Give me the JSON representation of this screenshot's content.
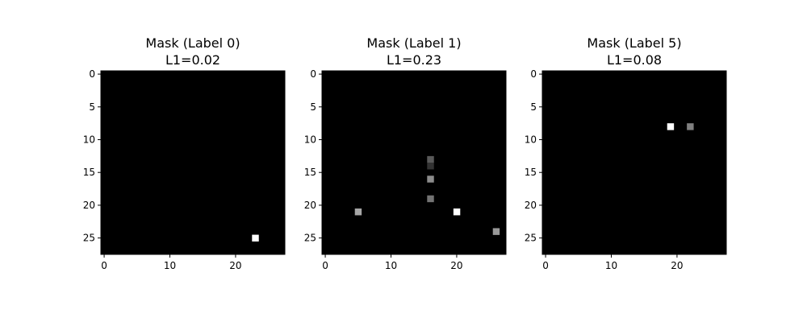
{
  "chart_data": [
    {
      "type": "heatmap",
      "title_line1": "Mask (Label 0)",
      "title_line2": "L1=0.02",
      "grid_size": 28,
      "colormap": "gray",
      "background": "#000000",
      "xticks": [
        0,
        10,
        20
      ],
      "yticks": [
        0,
        5,
        10,
        15,
        20,
        25
      ],
      "cells": [
        {
          "row": 25,
          "col": 23,
          "value": 1.0
        }
      ]
    },
    {
      "type": "heatmap",
      "title_line1": "Mask (Label 1)",
      "title_line2": "L1=0.23",
      "grid_size": 28,
      "colormap": "gray",
      "background": "#000000",
      "xticks": [
        0,
        10,
        20
      ],
      "yticks": [
        0,
        5,
        10,
        15,
        20,
        25
      ],
      "cells": [
        {
          "row": 13,
          "col": 16,
          "value": 0.35
        },
        {
          "row": 14,
          "col": 16,
          "value": 0.2
        },
        {
          "row": 16,
          "col": 16,
          "value": 0.55
        },
        {
          "row": 19,
          "col": 16,
          "value": 0.45
        },
        {
          "row": 21,
          "col": 5,
          "value": 0.65
        },
        {
          "row": 21,
          "col": 20,
          "value": 1.0
        },
        {
          "row": 24,
          "col": 26,
          "value": 0.6
        }
      ]
    },
    {
      "type": "heatmap",
      "title_line1": "Mask (Label 5)",
      "title_line2": "L1=0.08",
      "grid_size": 28,
      "colormap": "gray",
      "background": "#000000",
      "xticks": [
        0,
        10,
        20
      ],
      "yticks": [
        0,
        5,
        10,
        15,
        20,
        25
      ],
      "cells": [
        {
          "row": 8,
          "col": 19,
          "value": 1.0
        },
        {
          "row": 8,
          "col": 22,
          "value": 0.5
        }
      ]
    }
  ]
}
